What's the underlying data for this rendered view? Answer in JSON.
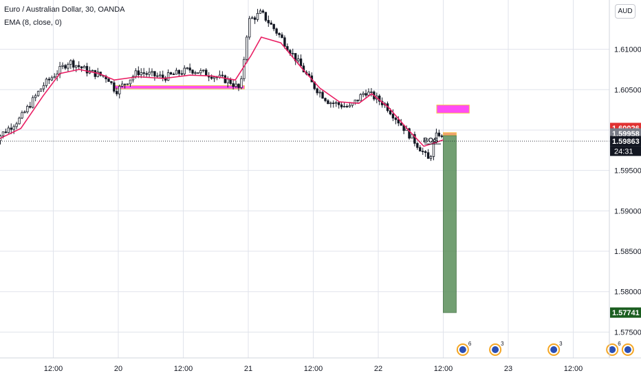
{
  "header": {
    "title": "Euro / Australian Dollar, 30, OANDA",
    "indicator": "EMA (8, close, 0)"
  },
  "currency_button": "AUD",
  "colors": {
    "up": "#131722",
    "down": "#131722",
    "ema": "#e91e63",
    "zone": "#ff4df5",
    "zone_border": "#f5c04a",
    "target": "#5a8f5a",
    "grid": "#e0e3eb"
  },
  "price_labels": {
    "resistance": {
      "text": "1.60026",
      "value": 1.60026,
      "color": "#e03131"
    },
    "entry": {
      "text": "1.59958",
      "value": 1.59958,
      "color": "#787b86"
    },
    "current": {
      "text": "1.59863",
      "value": 1.59863,
      "color": "#131722"
    },
    "countdown": "24:31",
    "target": {
      "text": "1.57741",
      "value": 1.57741,
      "color": "#1b5e20"
    }
  },
  "chart_annotations": {
    "bos_label": "BOS",
    "event_icons": [
      {
        "name": "event-icon",
        "count": "6",
        "day_pos": 3.65
      },
      {
        "name": "event-icon",
        "count": "3",
        "day_pos": 3.9
      },
      {
        "name": "event-icon",
        "count": "3",
        "day_pos": 4.35
      },
      {
        "name": "event-icon",
        "count": "6",
        "day_pos": 4.8
      },
      {
        "name": "event-icon",
        "count": "",
        "day_pos": 4.92
      }
    ]
  },
  "chart_data": {
    "type": "candlestick",
    "title": "Euro / Australian Dollar, 30, OANDA",
    "xlabel": "",
    "ylabel": "",
    "ylim": [
      1.5718,
      1.6161
    ],
    "y_scale_position": "right",
    "grid": true,
    "x_ticks": [
      {
        "label": "12:00",
        "pos": 0.5
      },
      {
        "label": "20",
        "pos": 1.0
      },
      {
        "label": "12:00",
        "pos": 1.5
      },
      {
        "label": "21",
        "pos": 2.0
      },
      {
        "label": "12:00",
        "pos": 2.5
      },
      {
        "label": "22",
        "pos": 3.0
      },
      {
        "label": "12:00",
        "pos": 3.5
      },
      {
        "label": "23",
        "pos": 4.0
      },
      {
        "label": "12:00",
        "pos": 4.5
      }
    ],
    "y_ticks": [
      1.61,
      1.605,
      1.6,
      1.595,
      1.59,
      1.585,
      1.58,
      1.575
    ],
    "series": [
      {
        "name": "EUR/AUD",
        "type": "candlestick",
        "points": [
          [
            0.03,
            1.5985
          ],
          [
            0.25,
            1.6015
          ],
          [
            0.42,
            1.6055
          ],
          [
            0.62,
            1.6085
          ],
          [
            0.78,
            1.6072
          ],
          [
            0.92,
            1.6065
          ],
          [
            0.98,
            1.6048
          ],
          [
            1.15,
            1.6072
          ],
          [
            1.35,
            1.6065
          ],
          [
            1.55,
            1.6075
          ],
          [
            1.72,
            1.6068
          ],
          [
            1.86,
            1.606
          ],
          [
            1.94,
            1.605
          ],
          [
            2.0,
            1.6135
          ],
          [
            2.1,
            1.6145
          ],
          [
            2.25,
            1.6115
          ],
          [
            2.4,
            1.608
          ],
          [
            2.5,
            1.6055
          ],
          [
            2.62,
            1.6035
          ],
          [
            2.78,
            1.6028
          ],
          [
            2.9,
            1.6048
          ],
          [
            3.05,
            1.6032
          ],
          [
            3.2,
            1.6002
          ],
          [
            3.32,
            1.5978
          ],
          [
            3.39,
            1.5962
          ],
          [
            3.43,
            1.5985
          ],
          [
            3.46,
            1.5998
          ],
          [
            3.5,
            1.5986
          ]
        ]
      },
      {
        "name": "EMA (8, close, 0)",
        "type": "line",
        "points": [
          [
            0.03,
            1.5985
          ],
          [
            0.25,
            1.6002
          ],
          [
            0.42,
            1.6042
          ],
          [
            0.55,
            1.607
          ],
          [
            0.7,
            1.6075
          ],
          [
            0.85,
            1.607
          ],
          [
            0.97,
            1.6062
          ],
          [
            1.15,
            1.6066
          ],
          [
            1.35,
            1.6064
          ],
          [
            1.55,
            1.6068
          ],
          [
            1.72,
            1.6067
          ],
          [
            1.9,
            1.6062
          ],
          [
            2.02,
            1.6092
          ],
          [
            2.1,
            1.6115
          ],
          [
            2.25,
            1.6108
          ],
          [
            2.42,
            1.6075
          ],
          [
            2.55,
            1.6052
          ],
          [
            2.7,
            1.6035
          ],
          [
            2.85,
            1.6033
          ],
          [
            2.95,
            1.6045
          ],
          [
            3.08,
            1.6028
          ],
          [
            3.22,
            1.6002
          ],
          [
            3.35,
            1.598
          ],
          [
            3.45,
            1.5985
          ],
          [
            3.5,
            1.5988
          ]
        ]
      }
    ],
    "zones": [
      {
        "name": "demand-zone",
        "t0": 0.97,
        "t1": 1.97,
        "y_top": 1.6055,
        "y_bottom": 1.6051
      },
      {
        "name": "supply-zone",
        "t0": 3.45,
        "t1": 3.7,
        "y_top": 1.6031,
        "y_bottom": 1.6021
      },
      {
        "name": "entry-zone",
        "t0": 3.5,
        "t1": 3.6,
        "y_top": 1.59968,
        "y_bottom": 1.59935
      },
      {
        "name": "take-profit-area",
        "t0": 3.5,
        "t1": 3.6,
        "y_top": 1.5993,
        "y_bottom": 1.57741
      }
    ],
    "horizontal_lines": [
      {
        "name": "current-price-line",
        "y": 1.59863,
        "style": "dotted"
      }
    ]
  }
}
